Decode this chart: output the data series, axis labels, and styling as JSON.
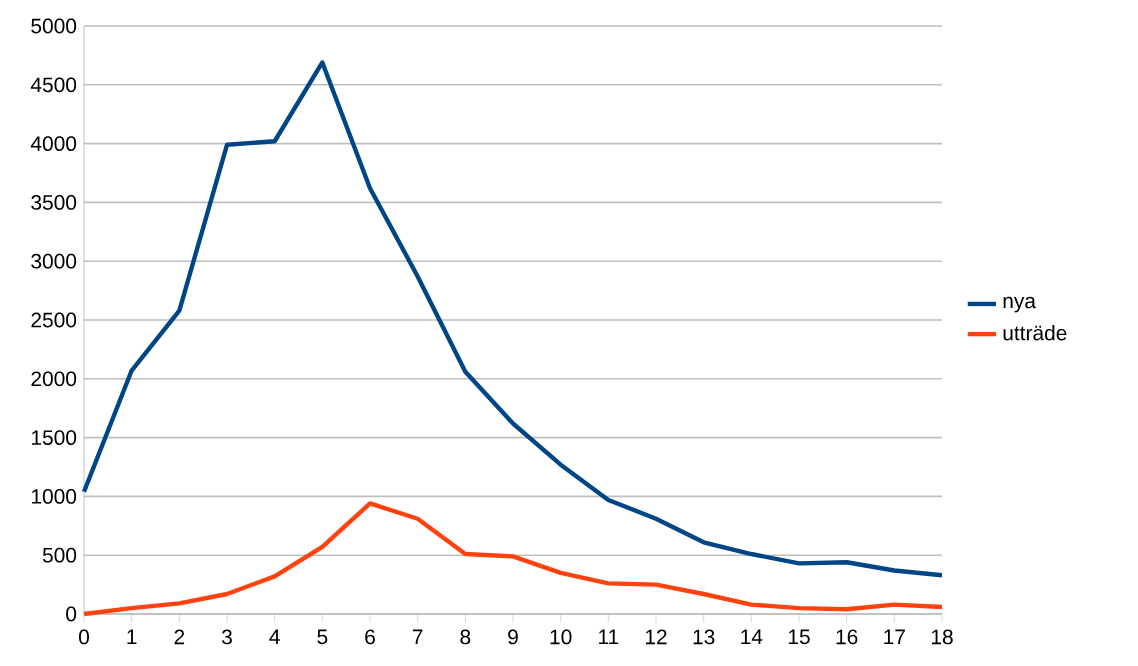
{
  "chart_data": {
    "type": "line",
    "x": [
      0,
      1,
      2,
      3,
      4,
      5,
      6,
      7,
      8,
      9,
      10,
      11,
      12,
      13,
      14,
      15,
      16,
      17,
      18
    ],
    "series": [
      {
        "name": "nya",
        "color": "#004586",
        "values": [
          1040,
          2070,
          2580,
          3990,
          4020,
          4690,
          3620,
          2870,
          2060,
          1620,
          1270,
          970,
          810,
          610,
          510,
          430,
          440,
          370,
          330
        ]
      },
      {
        "name": "utträde",
        "color": "#ff420e",
        "values": [
          0,
          50,
          90,
          170,
          320,
          570,
          940,
          810,
          510,
          490,
          350,
          260,
          250,
          170,
          80,
          50,
          40,
          80,
          60
        ]
      }
    ],
    "xlim": [
      0,
      18
    ],
    "xticks": [
      0,
      1,
      2,
      3,
      4,
      5,
      6,
      7,
      8,
      9,
      10,
      11,
      12,
      13,
      14,
      15,
      16,
      17,
      18
    ],
    "ylim": [
      0,
      5000
    ],
    "yticks": [
      0,
      500,
      1000,
      1500,
      2000,
      2500,
      3000,
      3500,
      4000,
      4500,
      5000
    ],
    "grid": "y",
    "legend": "right",
    "marker": "none",
    "line_style": "solid"
  }
}
